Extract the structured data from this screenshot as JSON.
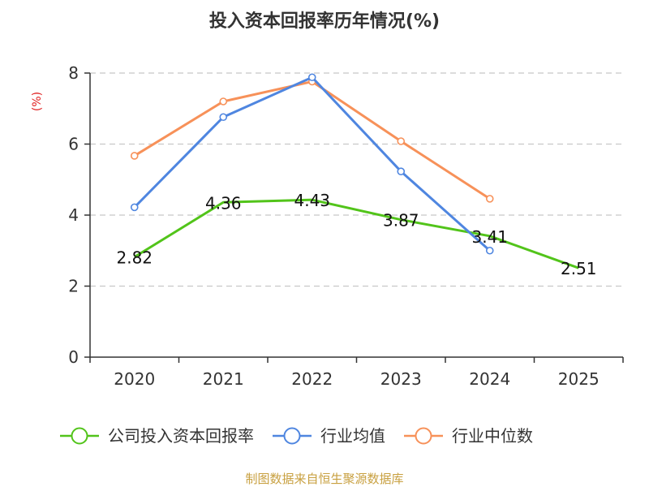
{
  "chart_data": {
    "type": "line",
    "title": "投入资本回报率历年情况(%)",
    "ylabel": "(%)",
    "xlabel": "",
    "categories": [
      "2020",
      "2021",
      "2022",
      "2023",
      "2024",
      "2025"
    ],
    "ylim": [
      0,
      8
    ],
    "yticks": [
      0,
      2,
      4,
      6,
      8
    ],
    "grid": true,
    "legend_position": "bottom",
    "series": [
      {
        "name": "公司投入资本回报率",
        "color": "#52c41a",
        "values": [
          2.82,
          4.36,
          4.43,
          3.87,
          3.41,
          2.51
        ],
        "labels": [
          "2.82",
          "4.36",
          "4.43",
          "3.87",
          "3.41",
          "2.51"
        ],
        "show_labels": true
      },
      {
        "name": "行业均值",
        "color": "#4f86e0",
        "values": [
          4.22,
          6.76,
          7.88,
          5.23,
          3.0,
          null
        ],
        "show_labels": false
      },
      {
        "name": "行业中位数",
        "color": "#f79159",
        "values": [
          5.67,
          7.2,
          7.76,
          6.08,
          4.46,
          null
        ],
        "show_labels": false
      }
    ]
  },
  "ylabel_color": "#e02020",
  "source": {
    "text": "制图数据来自恒生聚源数据库",
    "color": "#c8a040"
  }
}
